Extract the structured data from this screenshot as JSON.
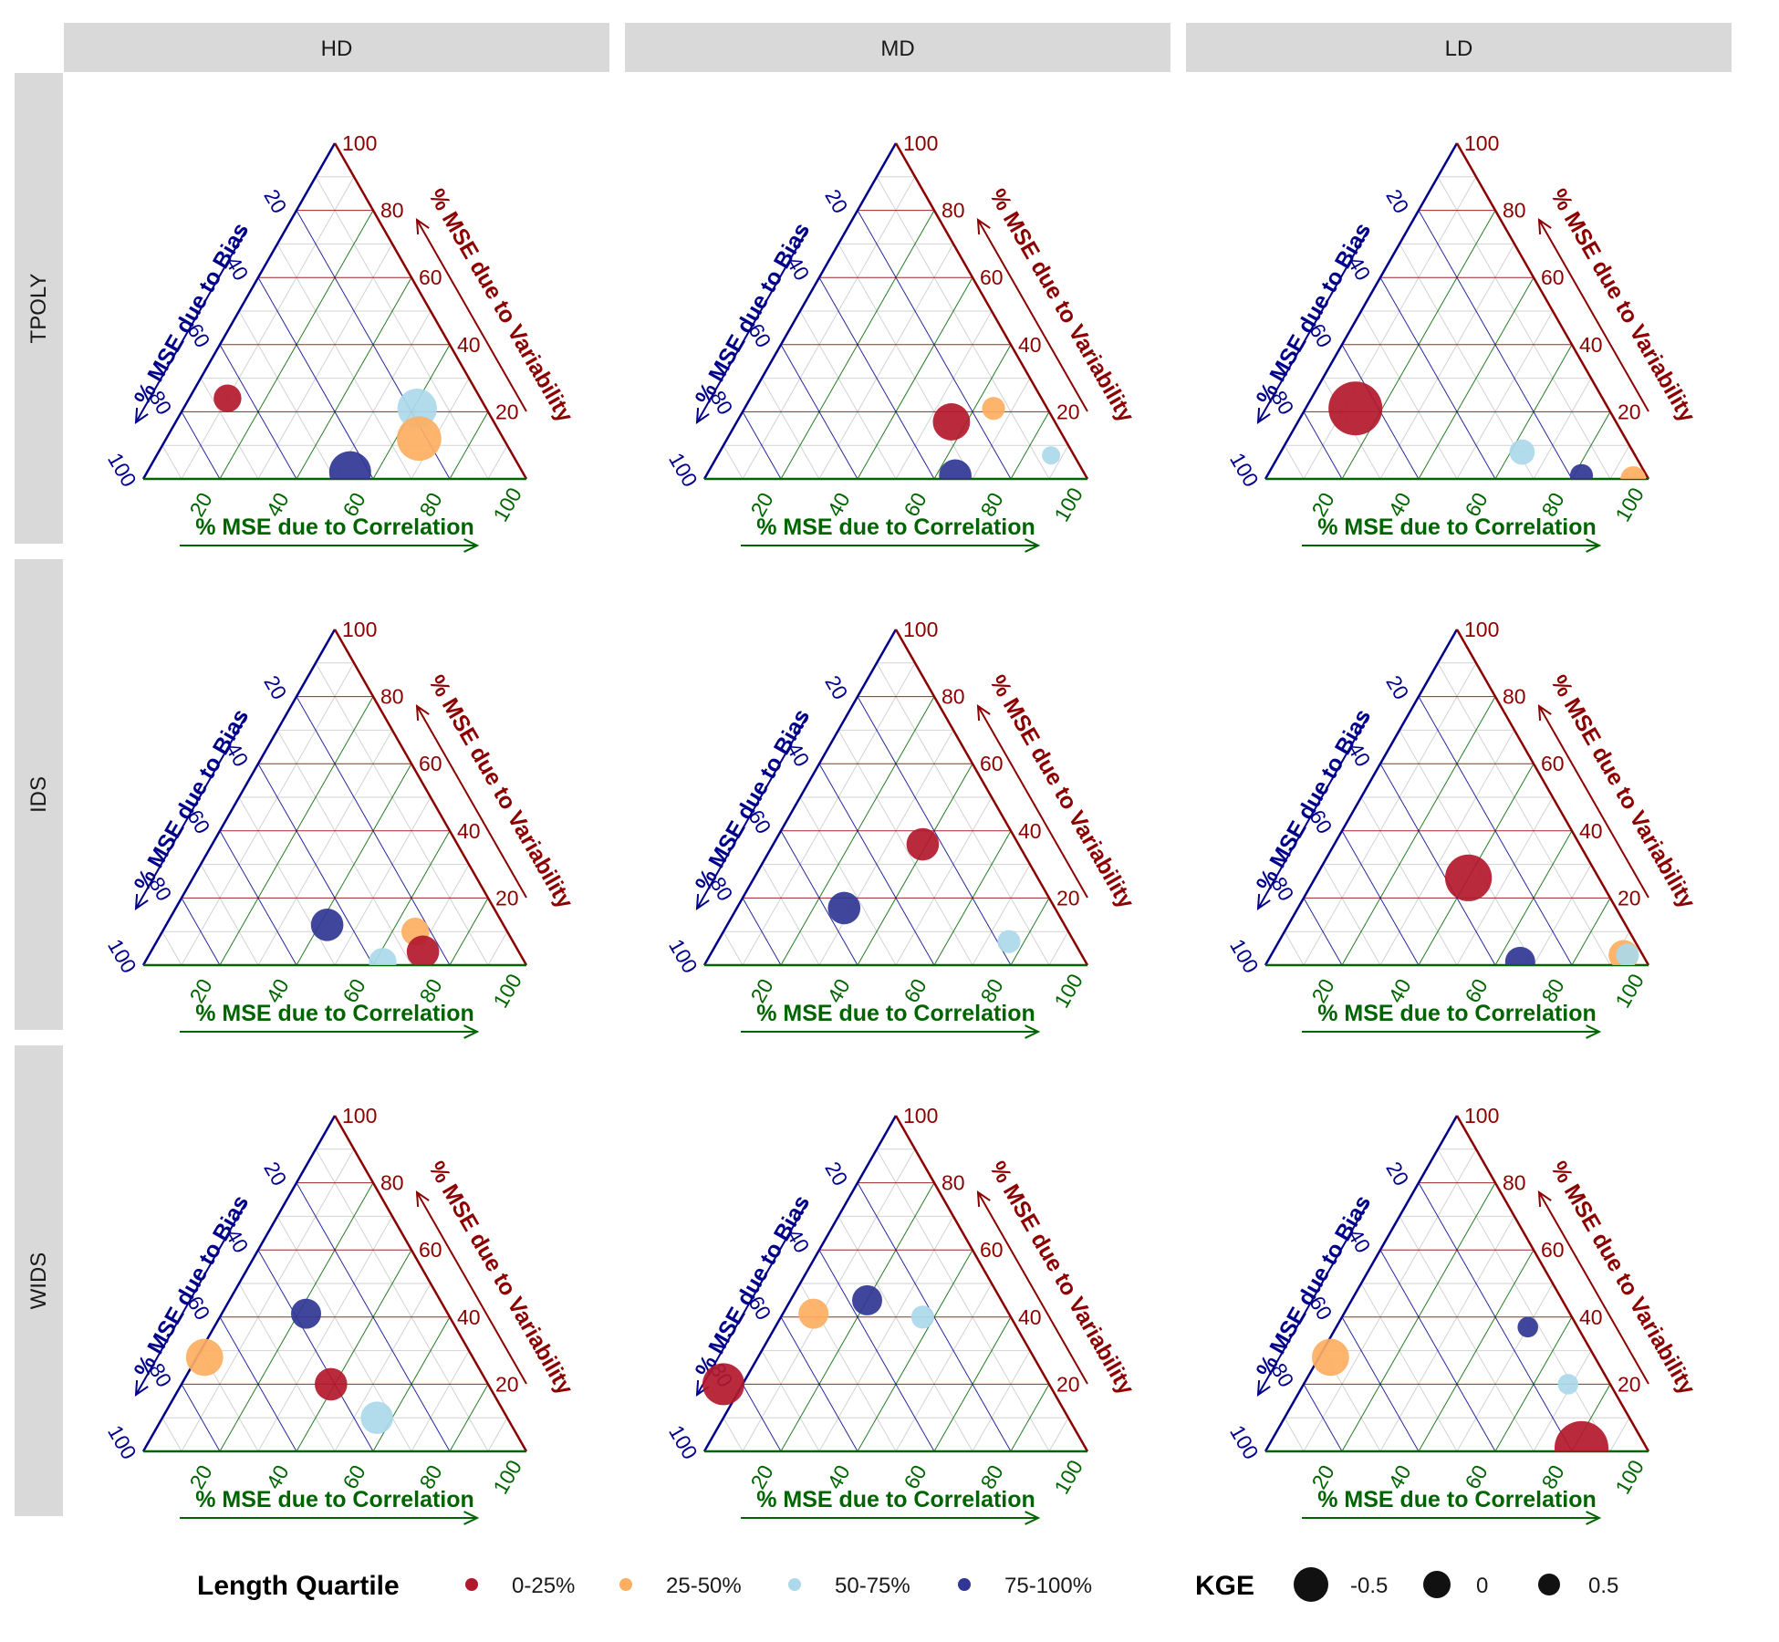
{
  "chart_data": {
    "type": "scatter",
    "subtype": "ternary",
    "columns": [
      "HD",
      "MD",
      "LD"
    ],
    "rows": [
      "TPOLY",
      "IDS",
      "WIDS"
    ],
    "axes": {
      "bias": {
        "label": "% MSE due to Bias",
        "color": "#00008b"
      },
      "variability": {
        "label": "% MSE due to Variability",
        "color": "#8b0000"
      },
      "correlation": {
        "label": "% MSE due to Correlation",
        "color": "#006400"
      }
    },
    "ticks": [
      "20",
      "40",
      "60",
      "80",
      "100"
    ],
    "grid": true,
    "legend_position": "bottom",
    "color_legend": {
      "title": "Length Quartile",
      "entries": [
        {
          "key": "q1",
          "label": "0-25%",
          "color": "#b2182b"
        },
        {
          "key": "q2",
          "label": "25-50%",
          "color": "#fdae61"
        },
        {
          "key": "q3",
          "label": "50-75%",
          "color": "#abd9e9"
        },
        {
          "key": "q4",
          "label": "75-100%",
          "color": "#313695"
        }
      ]
    },
    "size_legend": {
      "title": "KGE",
      "entries": [
        {
          "label": "-0.5",
          "kge": -0.5
        },
        {
          "label": "0",
          "kge": 0
        },
        {
          "label": "0.5",
          "kge": 0.5
        }
      ]
    },
    "panels": [
      {
        "column": "HD",
        "row": "TPOLY",
        "points": [
          {
            "quartile": "q1",
            "bias": 66,
            "variability": 24,
            "correlation": 10,
            "kge": 0.5
          },
          {
            "quartile": "q3",
            "bias": 18,
            "variability": 21,
            "correlation": 61,
            "kge": 0.0
          },
          {
            "quartile": "q2",
            "bias": 22,
            "variability": 12,
            "correlation": 66,
            "kge": -0.2
          },
          {
            "quartile": "q4",
            "bias": 45,
            "variability": 2,
            "correlation": 53,
            "kge": -0.1
          }
        ]
      },
      {
        "column": "MD",
        "row": "TPOLY",
        "points": [
          {
            "quartile": "q2",
            "bias": 14,
            "variability": 21,
            "correlation": 65,
            "kge": 0.7
          },
          {
            "quartile": "q1",
            "bias": 27,
            "variability": 17,
            "correlation": 56,
            "kge": 0.1
          },
          {
            "quartile": "q3",
            "bias": 6,
            "variability": 7,
            "correlation": 87,
            "kge": 0.9
          },
          {
            "quartile": "q4",
            "bias": 34,
            "variability": 1,
            "correlation": 65,
            "kge": 0.3
          }
        ]
      },
      {
        "column": "LD",
        "row": "TPOLY",
        "points": [
          {
            "quartile": "q1",
            "bias": 66,
            "variability": 21,
            "correlation": 13,
            "kge": -0.6
          },
          {
            "quartile": "q3",
            "bias": 29,
            "variability": 8,
            "correlation": 63,
            "kge": 0.6
          },
          {
            "quartile": "q4",
            "bias": 17,
            "variability": 1,
            "correlation": 82,
            "kge": 0.7
          },
          {
            "quartile": "q2",
            "bias": 4,
            "variability": 0,
            "correlation": 96,
            "kge": 0.6
          }
        ]
      },
      {
        "column": "HD",
        "row": "IDS",
        "points": [
          {
            "quartile": "q4",
            "bias": 46,
            "variability": 12,
            "correlation": 42,
            "kge": 0.3
          },
          {
            "quartile": "q2",
            "bias": 24,
            "variability": 10,
            "correlation": 66,
            "kge": 0.5
          },
          {
            "quartile": "q1",
            "bias": 25,
            "variability": 4,
            "correlation": 71,
            "kge": 0.3
          },
          {
            "quartile": "q3",
            "bias": 37,
            "variability": 1,
            "correlation": 62,
            "kge": 0.5
          }
        ]
      },
      {
        "column": "MD",
        "row": "IDS",
        "points": [
          {
            "quartile": "q1",
            "bias": 25,
            "variability": 36,
            "correlation": 39,
            "kge": 0.3
          },
          {
            "quartile": "q4",
            "bias": 55,
            "variability": 17,
            "correlation": 28,
            "kge": 0.3
          },
          {
            "quartile": "q3",
            "bias": 17,
            "variability": 7,
            "correlation": 76,
            "kge": 0.7
          }
        ]
      },
      {
        "column": "LD",
        "row": "IDS",
        "points": [
          {
            "quartile": "q1",
            "bias": 34,
            "variability": 26,
            "correlation": 40,
            "kge": -0.3
          },
          {
            "quartile": "q4",
            "bias": 33,
            "variability": 1,
            "correlation": 66,
            "kge": 0.4
          },
          {
            "quartile": "q2",
            "bias": 5,
            "variability": 3,
            "correlation": 92,
            "kge": 0.4
          },
          {
            "quartile": "q3",
            "bias": 4,
            "variability": 3,
            "correlation": 93,
            "kge": 0.7
          }
        ]
      },
      {
        "column": "HD",
        "row": "WIDS",
        "points": [
          {
            "quartile": "q4",
            "bias": 37,
            "variability": 41,
            "correlation": 22,
            "kge": 0.4
          },
          {
            "quartile": "q2",
            "bias": 70,
            "variability": 28,
            "correlation": 2,
            "kge": 0.1
          },
          {
            "quartile": "q1",
            "bias": 41,
            "variability": 20,
            "correlation": 39,
            "kge": 0.3
          },
          {
            "quartile": "q3",
            "bias": 34,
            "variability": 10,
            "correlation": 56,
            "kge": 0.3
          }
        ]
      },
      {
        "column": "MD",
        "row": "WIDS",
        "points": [
          {
            "quartile": "q4",
            "bias": 35,
            "variability": 45,
            "correlation": 20,
            "kge": 0.4
          },
          {
            "quartile": "q2",
            "bias": 51,
            "variability": 41,
            "correlation": 8,
            "kge": 0.4
          },
          {
            "quartile": "q3",
            "bias": 23,
            "variability": 40,
            "correlation": 37,
            "kge": 0.7
          },
          {
            "quartile": "q1",
            "bias": 85,
            "variability": 20,
            "correlation": -5,
            "kge": -0.1
          }
        ]
      },
      {
        "column": "LD",
        "row": "WIDS",
        "points": [
          {
            "quartile": "q4",
            "bias": 13,
            "variability": 37,
            "correlation": 50,
            "kge": 0.8
          },
          {
            "quartile": "q2",
            "bias": 69,
            "variability": 28,
            "correlation": 3,
            "kge": 0.1
          },
          {
            "quartile": "q3",
            "bias": 11,
            "variability": 20,
            "correlation": 69,
            "kge": 0.8
          },
          {
            "quartile": "q1",
            "bias": 17,
            "variability": 1,
            "correlation": 82,
            "kge": -0.6
          }
        ]
      }
    ]
  }
}
